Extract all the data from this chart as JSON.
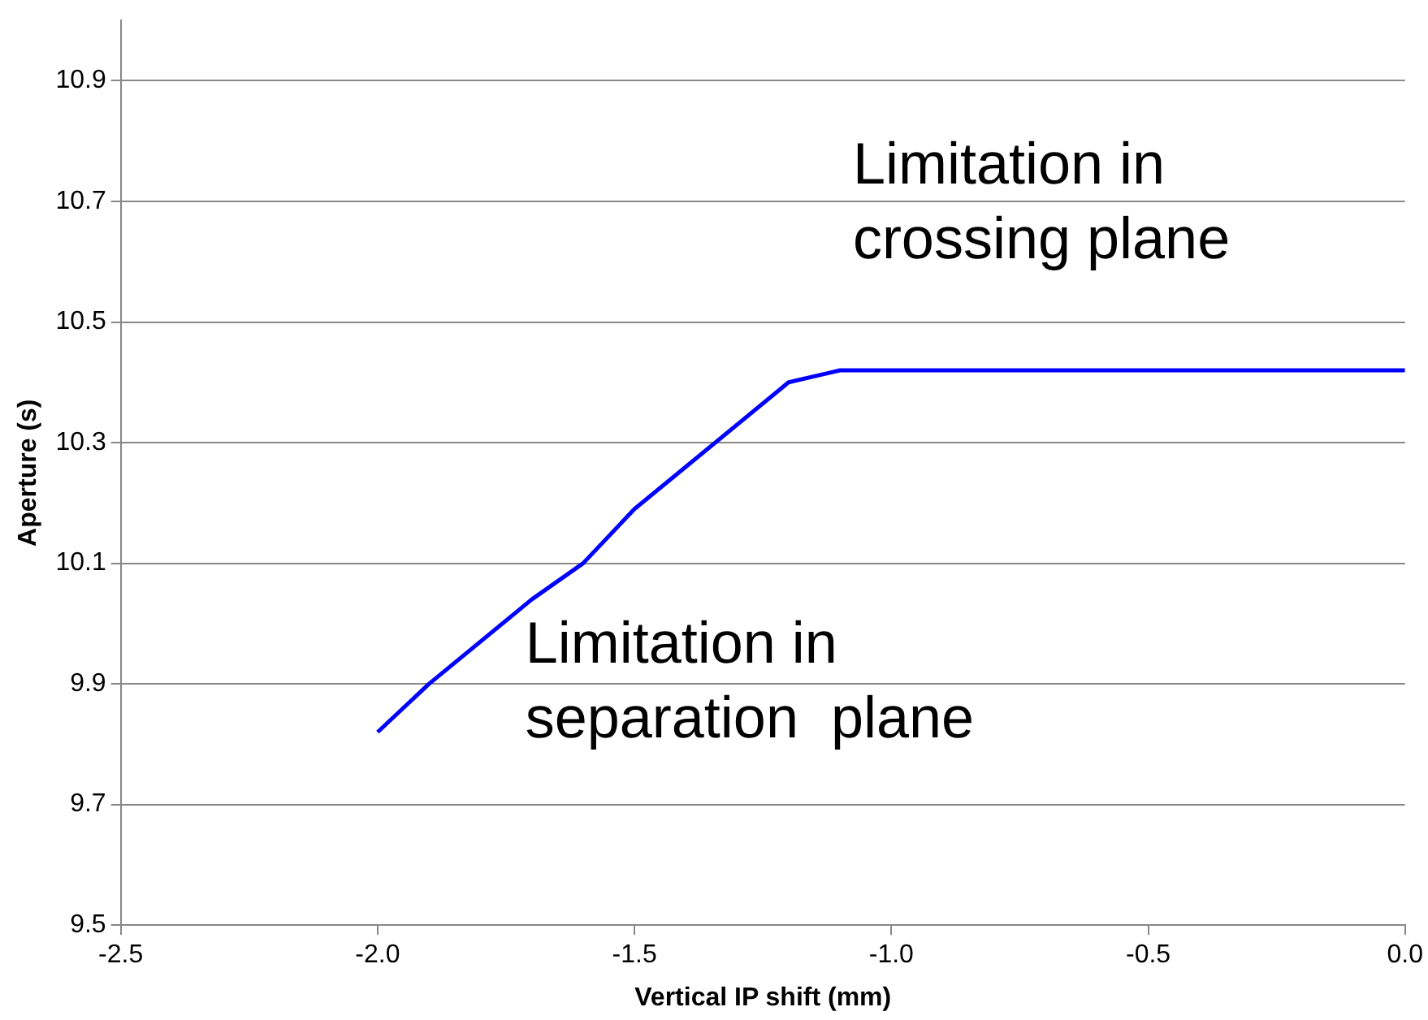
{
  "chart_data": {
    "type": "line",
    "xlabel": "Vertical IP shift (mm)",
    "ylabel": "Aperture (s)",
    "x": [
      -2.0,
      -1.9,
      -1.7,
      -1.6,
      -1.5,
      -1.2,
      -1.1,
      0.0
    ],
    "series": [
      {
        "color": "#0000ff",
        "values": [
          9.82,
          9.9,
          10.04,
          10.1,
          10.19,
          10.4,
          10.42,
          10.42
        ]
      }
    ],
    "xlim": [
      -2.5,
      0.0
    ],
    "xticks": [
      {
        "value": -2.5,
        "label": "-2.5"
      },
      {
        "value": -2.0,
        "label": "-2.0"
      },
      {
        "value": -1.5,
        "label": "-1.5"
      },
      {
        "value": -1.0,
        "label": "-1.0"
      },
      {
        "value": -0.5,
        "label": "-0.5"
      },
      {
        "value": 0.0,
        "label": "0.0"
      }
    ],
    "ylim": [
      9.5,
      11.0
    ],
    "yticks": [
      9.5,
      9.7,
      9.9,
      10.1,
      10.3,
      10.5,
      10.7,
      10.9
    ],
    "grid": "y",
    "legend": false,
    "marker": "none",
    "line_style": "solid",
    "annotations": [
      "Limitation in\nseparation  plane",
      "Limitation in\ncrossing plane"
    ]
  }
}
